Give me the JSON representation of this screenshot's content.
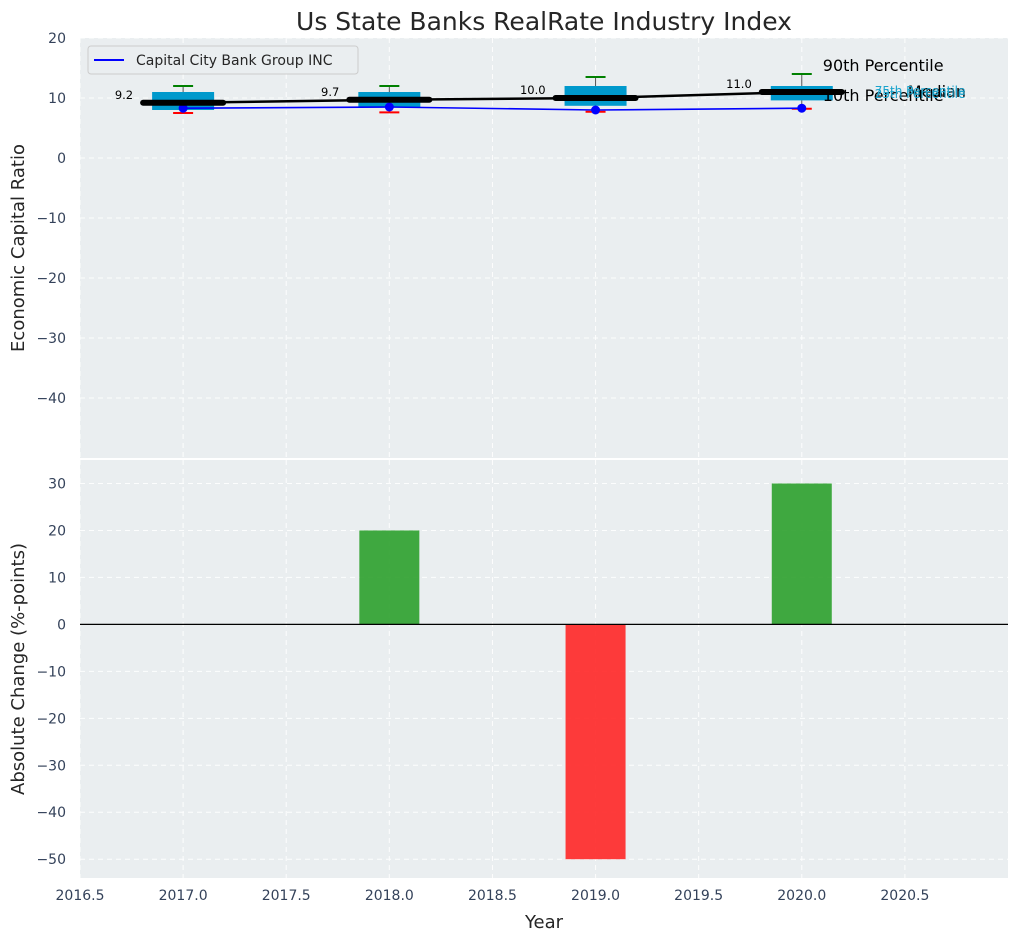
{
  "title": "Us State Banks RealRate Industry Index",
  "chart_data": [
    {
      "type": "box",
      "ylabel": "Economic Capital Ratio",
      "xlim": [
        2016.5,
        2021.0
      ],
      "ylim": [
        -50,
        20
      ],
      "yticks": [
        20,
        10,
        0,
        -10,
        -20,
        -30,
        -40
      ],
      "years": [
        2017,
        2018,
        2019,
        2020
      ],
      "p10": [
        7.5,
        7.6,
        7.7,
        8.2
      ],
      "p25": [
        8.0,
        8.4,
        8.7,
        9.6
      ],
      "median": [
        9.2,
        9.7,
        10.0,
        11.0
      ],
      "p75": [
        11.0,
        11.0,
        12.0,
        12.0
      ],
      "p90": [
        12.0,
        12.0,
        13.5,
        14.0
      ],
      "median_labels": [
        "9.2",
        "9.7",
        "10.0",
        "11.0"
      ],
      "company": {
        "name": "Capital City Bank Group INC",
        "values": [
          8.3,
          8.5,
          8.0,
          8.3
        ],
        "color": "#0000ff"
      },
      "legend_position": "upper-left",
      "annotations": {
        "p90": "90th Percentile",
        "median": "Median",
        "p10": "10th Percentile",
        "p75": "75th Percentile",
        "p25": "25th Percentile"
      },
      "colors": {
        "box": "#0099cc",
        "median": "#000000",
        "p90": "#008000",
        "p10": "#ff0000",
        "company": "#0000ff",
        "band_label": "#1aa3cc"
      }
    },
    {
      "type": "bar",
      "ylabel": "Absolute Change (%-points)",
      "xlabel": "Year",
      "xlim": [
        2016.5,
        2021.0
      ],
      "ylim": [
        -54,
        35
      ],
      "yticks": [
        30,
        20,
        10,
        0,
        -10,
        -20,
        -30,
        -40,
        -50
      ],
      "xticks": [
        "2016.5",
        "2017.0",
        "2017.5",
        "2018.0",
        "2018.5",
        "2019.0",
        "2019.5",
        "2020.0",
        "2020.5"
      ],
      "xtick_values": [
        2016.5,
        2017.0,
        2017.5,
        2018.0,
        2018.5,
        2019.0,
        2019.5,
        2020.0,
        2020.5
      ],
      "years": [
        2017,
        2018,
        2019,
        2020
      ],
      "values": [
        0,
        20,
        -50,
        30
      ],
      "colors": {
        "positive": "#2ca02c",
        "negative": "#ff2626",
        "zero_line": "#000000"
      }
    }
  ]
}
